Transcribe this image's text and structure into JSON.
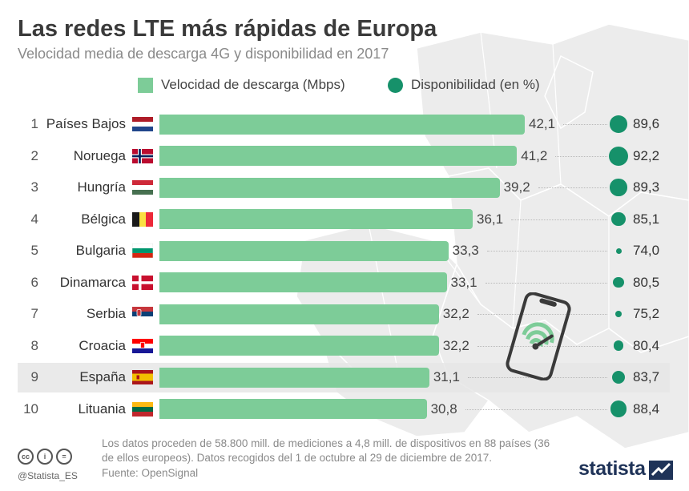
{
  "header": {
    "title": "Las redes LTE más rápidas de Europa",
    "subtitle": "Velocidad media de descarga 4G y disponibilidad en 2017"
  },
  "legend": {
    "speed_label": "Velocidad de descarga (Mbps)",
    "availability_label": "Disponibilidad (en %)"
  },
  "colors": {
    "bar": "#7dcc98",
    "dot": "#16916a",
    "highlight": "#e6e6e6",
    "brand": "#1f3358"
  },
  "highlighted_rank": 9,
  "chart_data": {
    "type": "bar",
    "orientation": "horizontal",
    "categories": [
      "Países Bajos",
      "Noruega",
      "Hungría",
      "Bélgica",
      "Bulgaria",
      "Dinamarca",
      "Serbia",
      "Croacia",
      "España",
      "Lituania"
    ],
    "ranks": [
      "1",
      "2",
      "3",
      "4",
      "5",
      "6",
      "7",
      "8",
      "9",
      "10"
    ],
    "flags": [
      "netherlands-flag",
      "norway-flag",
      "hungary-flag",
      "belgium-flag",
      "bulgaria-flag",
      "denmark-flag",
      "serbia-flag",
      "croatia-flag",
      "spain-flag",
      "lithuania-flag"
    ],
    "series": [
      {
        "name": "Velocidad de descarga (Mbps)",
        "values": [
          42.1,
          41.2,
          39.2,
          36.1,
          33.3,
          33.1,
          32.2,
          32.2,
          31.1,
          30.8
        ],
        "labels": [
          "42,1",
          "41,2",
          "39,2",
          "36,1",
          "33,3",
          "33,1",
          "32,2",
          "32,2",
          "31,1",
          "30,8"
        ]
      },
      {
        "name": "Disponibilidad (en %)",
        "values": [
          89.6,
          92.2,
          89.3,
          85.1,
          74.0,
          80.5,
          75.2,
          80.4,
          83.7,
          88.4
        ],
        "labels": [
          "89,6",
          "92,2",
          "89,3",
          "85,1",
          "74,0",
          "80,5",
          "75,2",
          "80,4",
          "83,7",
          "88,4"
        ]
      }
    ],
    "xlim": [
      0,
      42.1
    ],
    "legend_position": "top"
  },
  "footer": {
    "note": "Los datos proceden de 58.800 mill. de mediciones a 4,8 mill. de dispositivos en 88 países (36 de ellos europeos). Datos recogidos del 1 de octubre al 29 de diciembre de 2017.",
    "source": "Fuente: OpenSignal",
    "handle": "@Statista_ES",
    "brand": "statista",
    "license_icons": [
      "cc-icon",
      "by-icon",
      "nd-icon"
    ]
  }
}
